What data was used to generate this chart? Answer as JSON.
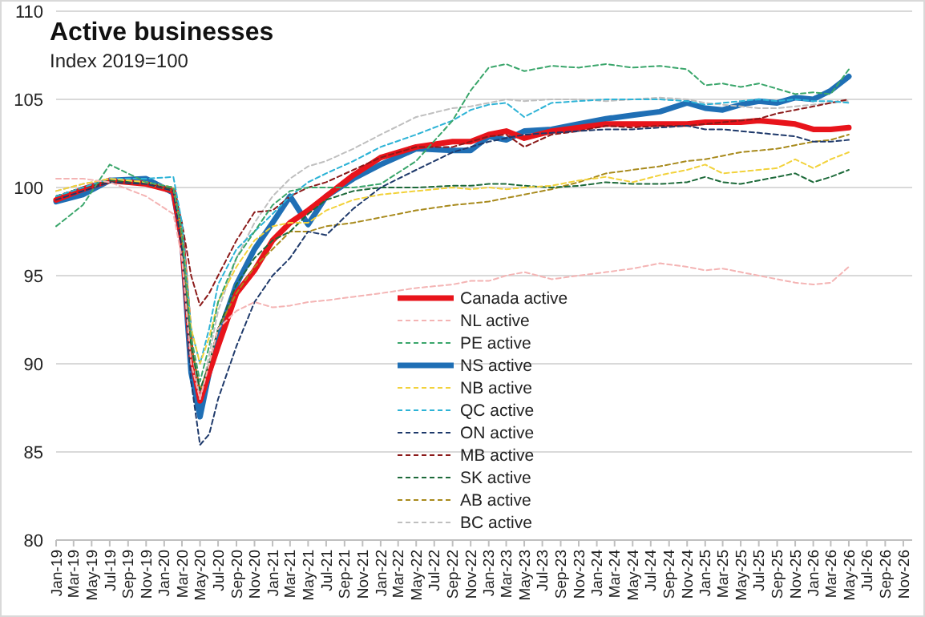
{
  "chart_data": {
    "type": "line",
    "title": "Active businesses",
    "subtitle": "Index 2019=100",
    "x": [
      "2019-01",
      "2019-04",
      "2019-07",
      "2019-11",
      "2020-02",
      "2020-03",
      "2020-04",
      "2020-05",
      "2020-06",
      "2020-07",
      "2020-09",
      "2020-11",
      "2021-01",
      "2021-03",
      "2021-05",
      "2021-07",
      "2021-10",
      "2022-01",
      "2022-05",
      "2022-09",
      "2022-11",
      "2023-01",
      "2023-03",
      "2023-05",
      "2023-08",
      "2023-11",
      "2024-02",
      "2024-05",
      "2024-08",
      "2024-11",
      "2025-01",
      "2025-03",
      "2025-05",
      "2025-07",
      "2025-09",
      "2025-11",
      "2026-01",
      "2026-03",
      "2026-05"
    ],
    "xlim": [
      "2019-01",
      "2026-12"
    ],
    "xticks": [
      {
        "value": "2019-01",
        "label": "Jan-19"
      },
      {
        "value": "2019-03",
        "label": "Mar-19"
      },
      {
        "value": "2019-05",
        "label": "May-19"
      },
      {
        "value": "2019-07",
        "label": "Jul-19"
      },
      {
        "value": "2019-09",
        "label": "Sep-19"
      },
      {
        "value": "2019-11",
        "label": "Nov-19"
      },
      {
        "value": "2020-01",
        "label": "Jan-20"
      },
      {
        "value": "2020-03",
        "label": "Mar-20"
      },
      {
        "value": "2020-05",
        "label": "May-20"
      },
      {
        "value": "2020-07",
        "label": "Jul-20"
      },
      {
        "value": "2020-09",
        "label": "Sep-20"
      },
      {
        "value": "2020-11",
        "label": "Nov-20"
      },
      {
        "value": "2021-01",
        "label": "Jan-21"
      },
      {
        "value": "2021-03",
        "label": "Mar-21"
      },
      {
        "value": "2021-05",
        "label": "May-21"
      },
      {
        "value": "2021-07",
        "label": "Jul-21"
      },
      {
        "value": "2021-09",
        "label": "Sep-21"
      },
      {
        "value": "2021-11",
        "label": "Nov-21"
      },
      {
        "value": "2022-01",
        "label": "Jan-22"
      },
      {
        "value": "2022-03",
        "label": "Mar-22"
      },
      {
        "value": "2022-05",
        "label": "May-22"
      },
      {
        "value": "2022-07",
        "label": "Jul-22"
      },
      {
        "value": "2022-09",
        "label": "Sep-22"
      },
      {
        "value": "2022-11",
        "label": "Nov-22"
      },
      {
        "value": "2023-01",
        "label": "Jan-23"
      },
      {
        "value": "2023-03",
        "label": "Mar-23"
      },
      {
        "value": "2023-05",
        "label": "May-23"
      },
      {
        "value": "2023-07",
        "label": "Jul-23"
      },
      {
        "value": "2023-09",
        "label": "Sep-23"
      },
      {
        "value": "2023-11",
        "label": "Nov-23"
      },
      {
        "value": "2024-01",
        "label": "Jan-24"
      },
      {
        "value": "2024-03",
        "label": "Mar-24"
      },
      {
        "value": "2024-05",
        "label": "May-24"
      },
      {
        "value": "2024-07",
        "label": "Jul-24"
      },
      {
        "value": "2024-09",
        "label": "Sep-24"
      },
      {
        "value": "2024-11",
        "label": "Nov-24"
      },
      {
        "value": "2025-01",
        "label": "Jan-25"
      },
      {
        "value": "2025-03",
        "label": "Mar-25"
      },
      {
        "value": "2025-05",
        "label": "May-25"
      },
      {
        "value": "2025-07",
        "label": "Jul-25"
      },
      {
        "value": "2025-09",
        "label": "Sep-25"
      },
      {
        "value": "2025-11",
        "label": "Nov-25"
      },
      {
        "value": "2026-01",
        "label": "Jan-26"
      },
      {
        "value": "2026-03",
        "label": "Mar-26"
      },
      {
        "value": "2026-05",
        "label": "May-26"
      },
      {
        "value": "2026-07",
        "label": "Jul-26"
      },
      {
        "value": "2026-09",
        "label": "Sep-26"
      },
      {
        "value": "2026-11",
        "label": "Nov-26"
      }
    ],
    "ylim": [
      80,
      110
    ],
    "yticks": [
      80,
      85,
      90,
      95,
      100,
      105,
      110
    ],
    "grid": "y",
    "legend": "bottom",
    "marker": "none",
    "series": [
      {
        "name": "Canada active",
        "color": "#e8141b",
        "line_style": "solid",
        "values": [
          99.3,
          99.9,
          100.4,
          100.2,
          99.8,
          97.0,
          90.5,
          87.9,
          89.5,
          91.0,
          94.0,
          95.3,
          97.0,
          98.0,
          98.7,
          99.5,
          100.7,
          101.7,
          102.3,
          102.6,
          102.6,
          103.0,
          103.2,
          102.8,
          103.2,
          103.4,
          103.6,
          103.6,
          103.6,
          103.6,
          103.7,
          103.7,
          103.7,
          103.8,
          103.7,
          103.6,
          103.3,
          103.3,
          103.4
        ]
      },
      {
        "name": "NL active",
        "color": "#f4b4b4",
        "line_style": "dashed",
        "values": [
          100.5,
          100.5,
          100.3,
          99.5,
          98.5,
          96.0,
          90.0,
          88.0,
          90.0,
          92.0,
          93.0,
          93.5,
          93.2,
          93.3,
          93.5,
          93.6,
          93.8,
          94.0,
          94.3,
          94.5,
          94.7,
          94.7,
          95.0,
          95.2,
          94.8,
          95.0,
          95.2,
          95.4,
          95.7,
          95.5,
          95.3,
          95.4,
          95.2,
          95.0,
          94.8,
          94.6,
          94.5,
          94.6,
          95.5
        ]
      },
      {
        "name": "PE active",
        "color": "#3aa66b",
        "line_style": "dashed",
        "values": [
          97.8,
          99.0,
          101.3,
          100.3,
          100.0,
          97.5,
          91.5,
          89.0,
          91.0,
          93.5,
          96.0,
          97.5,
          99.0,
          99.8,
          100.0,
          100.0,
          100.0,
          100.2,
          101.5,
          103.8,
          105.5,
          106.8,
          107.0,
          106.6,
          106.9,
          106.8,
          107.0,
          106.8,
          106.9,
          106.7,
          105.8,
          105.9,
          105.7,
          105.9,
          105.6,
          105.3,
          105.4,
          105.3,
          106.7
        ]
      },
      {
        "name": "NS active",
        "color": "#1f6fb5",
        "line_style": "solid",
        "values": [
          99.2,
          99.6,
          100.4,
          100.5,
          99.7,
          97.0,
          89.5,
          87.0,
          89.5,
          91.5,
          94.5,
          96.5,
          98.0,
          99.5,
          97.9,
          99.5,
          100.5,
          101.3,
          102.2,
          102.1,
          102.1,
          102.9,
          102.7,
          103.2,
          103.3,
          103.6,
          103.9,
          104.1,
          104.3,
          104.8,
          104.5,
          104.4,
          104.7,
          104.9,
          104.8,
          105.1,
          105.0,
          105.5,
          106.3
        ]
      },
      {
        "name": "NB active",
        "color": "#f2d23c",
        "line_style": "dashed",
        "values": [
          99.8,
          100.2,
          100.5,
          100.3,
          100.0,
          97.5,
          92.0,
          90.0,
          91.5,
          93.5,
          95.5,
          97.0,
          97.8,
          98.0,
          98.0,
          98.7,
          99.3,
          99.6,
          99.8,
          100.0,
          99.9,
          100.0,
          99.9,
          100.0,
          100.1,
          100.4,
          100.6,
          100.3,
          100.7,
          101.0,
          101.3,
          100.8,
          100.9,
          101.0,
          101.1,
          101.6,
          101.1,
          101.6,
          102.0
        ]
      },
      {
        "name": "QC active",
        "color": "#2db3d6",
        "line_style": "dashed",
        "values": [
          99.5,
          100.0,
          100.5,
          100.5,
          100.6,
          98.0,
          92.0,
          90.0,
          92.0,
          94.5,
          96.5,
          97.5,
          98.5,
          99.5,
          100.3,
          100.8,
          101.5,
          102.3,
          103.0,
          103.8,
          104.4,
          104.7,
          104.8,
          104.0,
          104.8,
          104.9,
          105.0,
          105.0,
          105.0,
          104.9,
          104.7,
          104.8,
          104.9,
          105.0,
          104.9,
          105.0,
          104.9,
          104.9,
          104.8
        ]
      },
      {
        "name": "ON active",
        "color": "#1f3a6b",
        "line_style": "dashed",
        "values": [
          99.3,
          99.8,
          100.3,
          100.2,
          99.8,
          96.5,
          89.0,
          85.4,
          86.0,
          88.0,
          91.0,
          93.5,
          95.0,
          96.0,
          97.5,
          97.3,
          98.8,
          100.0,
          101.0,
          102.0,
          102.3,
          102.6,
          102.8,
          103.0,
          103.1,
          103.2,
          103.3,
          103.3,
          103.4,
          103.5,
          103.3,
          103.3,
          103.2,
          103.1,
          103.0,
          102.9,
          102.6,
          102.6,
          102.7
        ]
      },
      {
        "name": "MB active",
        "color": "#8b1a1a",
        "line_style": "dashed",
        "values": [
          99.5,
          100.0,
          100.3,
          100.2,
          100.0,
          98.0,
          95.0,
          93.3,
          94.0,
          95.0,
          97.0,
          98.6,
          98.7,
          99.5,
          100.0,
          100.3,
          101.0,
          101.7,
          102.3,
          102.3,
          102.6,
          102.9,
          103.0,
          102.3,
          103.0,
          103.2,
          103.5,
          103.4,
          103.5,
          103.5,
          103.6,
          103.7,
          103.8,
          103.9,
          104.2,
          104.4,
          104.6,
          104.8,
          105.0
        ]
      },
      {
        "name": "SK active",
        "color": "#1d6a3a",
        "line_style": "dashed",
        "values": [
          99.5,
          100.0,
          100.4,
          100.3,
          99.9,
          97.5,
          91.0,
          88.5,
          90.0,
          92.0,
          94.5,
          96.0,
          97.0,
          97.5,
          98.5,
          99.3,
          99.8,
          100.0,
          100.0,
          100.1,
          100.1,
          100.2,
          100.2,
          100.1,
          100.0,
          100.1,
          100.3,
          100.2,
          100.2,
          100.3,
          100.6,
          100.3,
          100.2,
          100.4,
          100.6,
          100.8,
          100.3,
          100.6,
          101.0
        ]
      },
      {
        "name": "AB active",
        "color": "#a88a1c",
        "line_style": "dashed",
        "values": [
          99.5,
          100.0,
          100.3,
          100.2,
          99.8,
          97.0,
          91.0,
          88.5,
          90.0,
          92.0,
          94.0,
          95.5,
          96.5,
          97.5,
          97.5,
          97.8,
          98.0,
          98.3,
          98.7,
          99.0,
          99.1,
          99.2,
          99.4,
          99.6,
          99.9,
          100.3,
          100.8,
          101.0,
          101.2,
          101.5,
          101.6,
          101.8,
          102.0,
          102.1,
          102.2,
          102.4,
          102.6,
          102.7,
          103.0
        ]
      },
      {
        "name": "BC active",
        "color": "#bfbfbf",
        "line_style": "dashed",
        "values": [
          99.8,
          100.2,
          100.5,
          100.3,
          100.0,
          97.5,
          91.0,
          88.0,
          90.5,
          93.0,
          96.0,
          98.0,
          99.5,
          100.5,
          101.2,
          101.5,
          102.2,
          103.0,
          104.0,
          104.5,
          104.6,
          104.8,
          105.0,
          104.9,
          105.0,
          105.0,
          104.9,
          105.0,
          105.1,
          105.0,
          104.8,
          104.7,
          104.6,
          104.5,
          104.5,
          104.6,
          104.7,
          104.8,
          104.9
        ]
      }
    ]
  }
}
